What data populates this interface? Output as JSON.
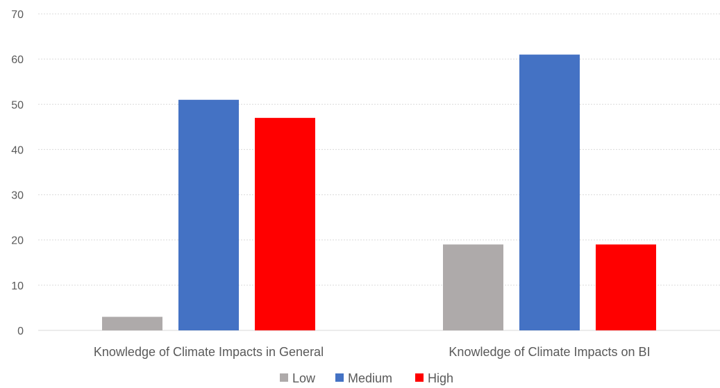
{
  "chart_data": {
    "type": "bar",
    "categories": [
      "Knowledge of Climate Impacts in General",
      "Knowledge of Climate Impacts on BI"
    ],
    "series": [
      {
        "name": "Low",
        "values": [
          3,
          19
        ],
        "color": "#aeaaaa"
      },
      {
        "name": "Medium",
        "values": [
          51,
          61
        ],
        "color": "#4472c4"
      },
      {
        "name": "High",
        "values": [
          47,
          19
        ],
        "color": "#ff0000"
      }
    ],
    "ylim": [
      0,
      70
    ],
    "yticks": [
      0,
      10,
      20,
      30,
      40,
      50,
      60,
      70
    ],
    "grid": true,
    "legend": "bottom"
  }
}
